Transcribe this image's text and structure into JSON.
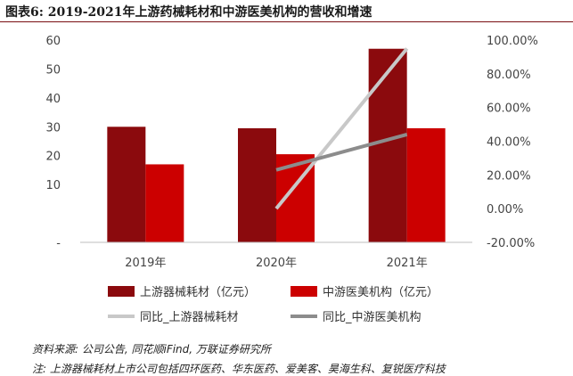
{
  "figure": {
    "title": "图表6: 2019-2021年上游药械耗材和中游医美机构的营收和增速",
    "source": "资料来源: 公司公告, 同花顺iFind, 万联证券研究所",
    "note": "注: 上游器械耗材上市公司包括四环医药、华东医药、爱美客、昊海生科、复锐医疗科技"
  },
  "colors": {
    "upstream_bar": "#8b0a0d",
    "midstream_bar": "#cc0000",
    "upstream_growth_line": "#c8c8c8",
    "midstream_growth_line": "#8c8c8c",
    "title_rule": "#7a0e12"
  },
  "chart_data": {
    "type": "bar",
    "categories": [
      "2019年",
      "2020年",
      "2021年"
    ],
    "series": [
      {
        "name": "上游器械耗材（亿元）",
        "kind": "bar",
        "axis": "left",
        "values": [
          30,
          29.5,
          57
        ]
      },
      {
        "name": "中游医美机构（亿元）",
        "kind": "bar",
        "axis": "left",
        "values": [
          17,
          20.5,
          29.5
        ]
      },
      {
        "name": "同比_上游器械耗材",
        "kind": "line",
        "axis": "right",
        "values": [
          null,
          0,
          95
        ]
      },
      {
        "name": "同比_中游医美机构",
        "kind": "line",
        "axis": "right",
        "values": [
          null,
          23,
          44
        ]
      }
    ],
    "left_axis": {
      "ylim": [
        -10,
        60
      ],
      "ticks": [
        -10,
        10,
        20,
        30,
        40,
        50,
        60
      ],
      "tick_labels": [
        "-",
        "10",
        "20",
        "30",
        "40",
        "50",
        "60"
      ]
    },
    "right_axis": {
      "ylim": [
        -20,
        100
      ],
      "ticks": [
        -20,
        0,
        20,
        40,
        60,
        80,
        100
      ],
      "tick_labels": [
        "-20.00%",
        "0.00%",
        "20.00%",
        "40.00%",
        "60.00%",
        "80.00%",
        "100.00%"
      ]
    },
    "grid": false,
    "legend_position": "bottom"
  }
}
